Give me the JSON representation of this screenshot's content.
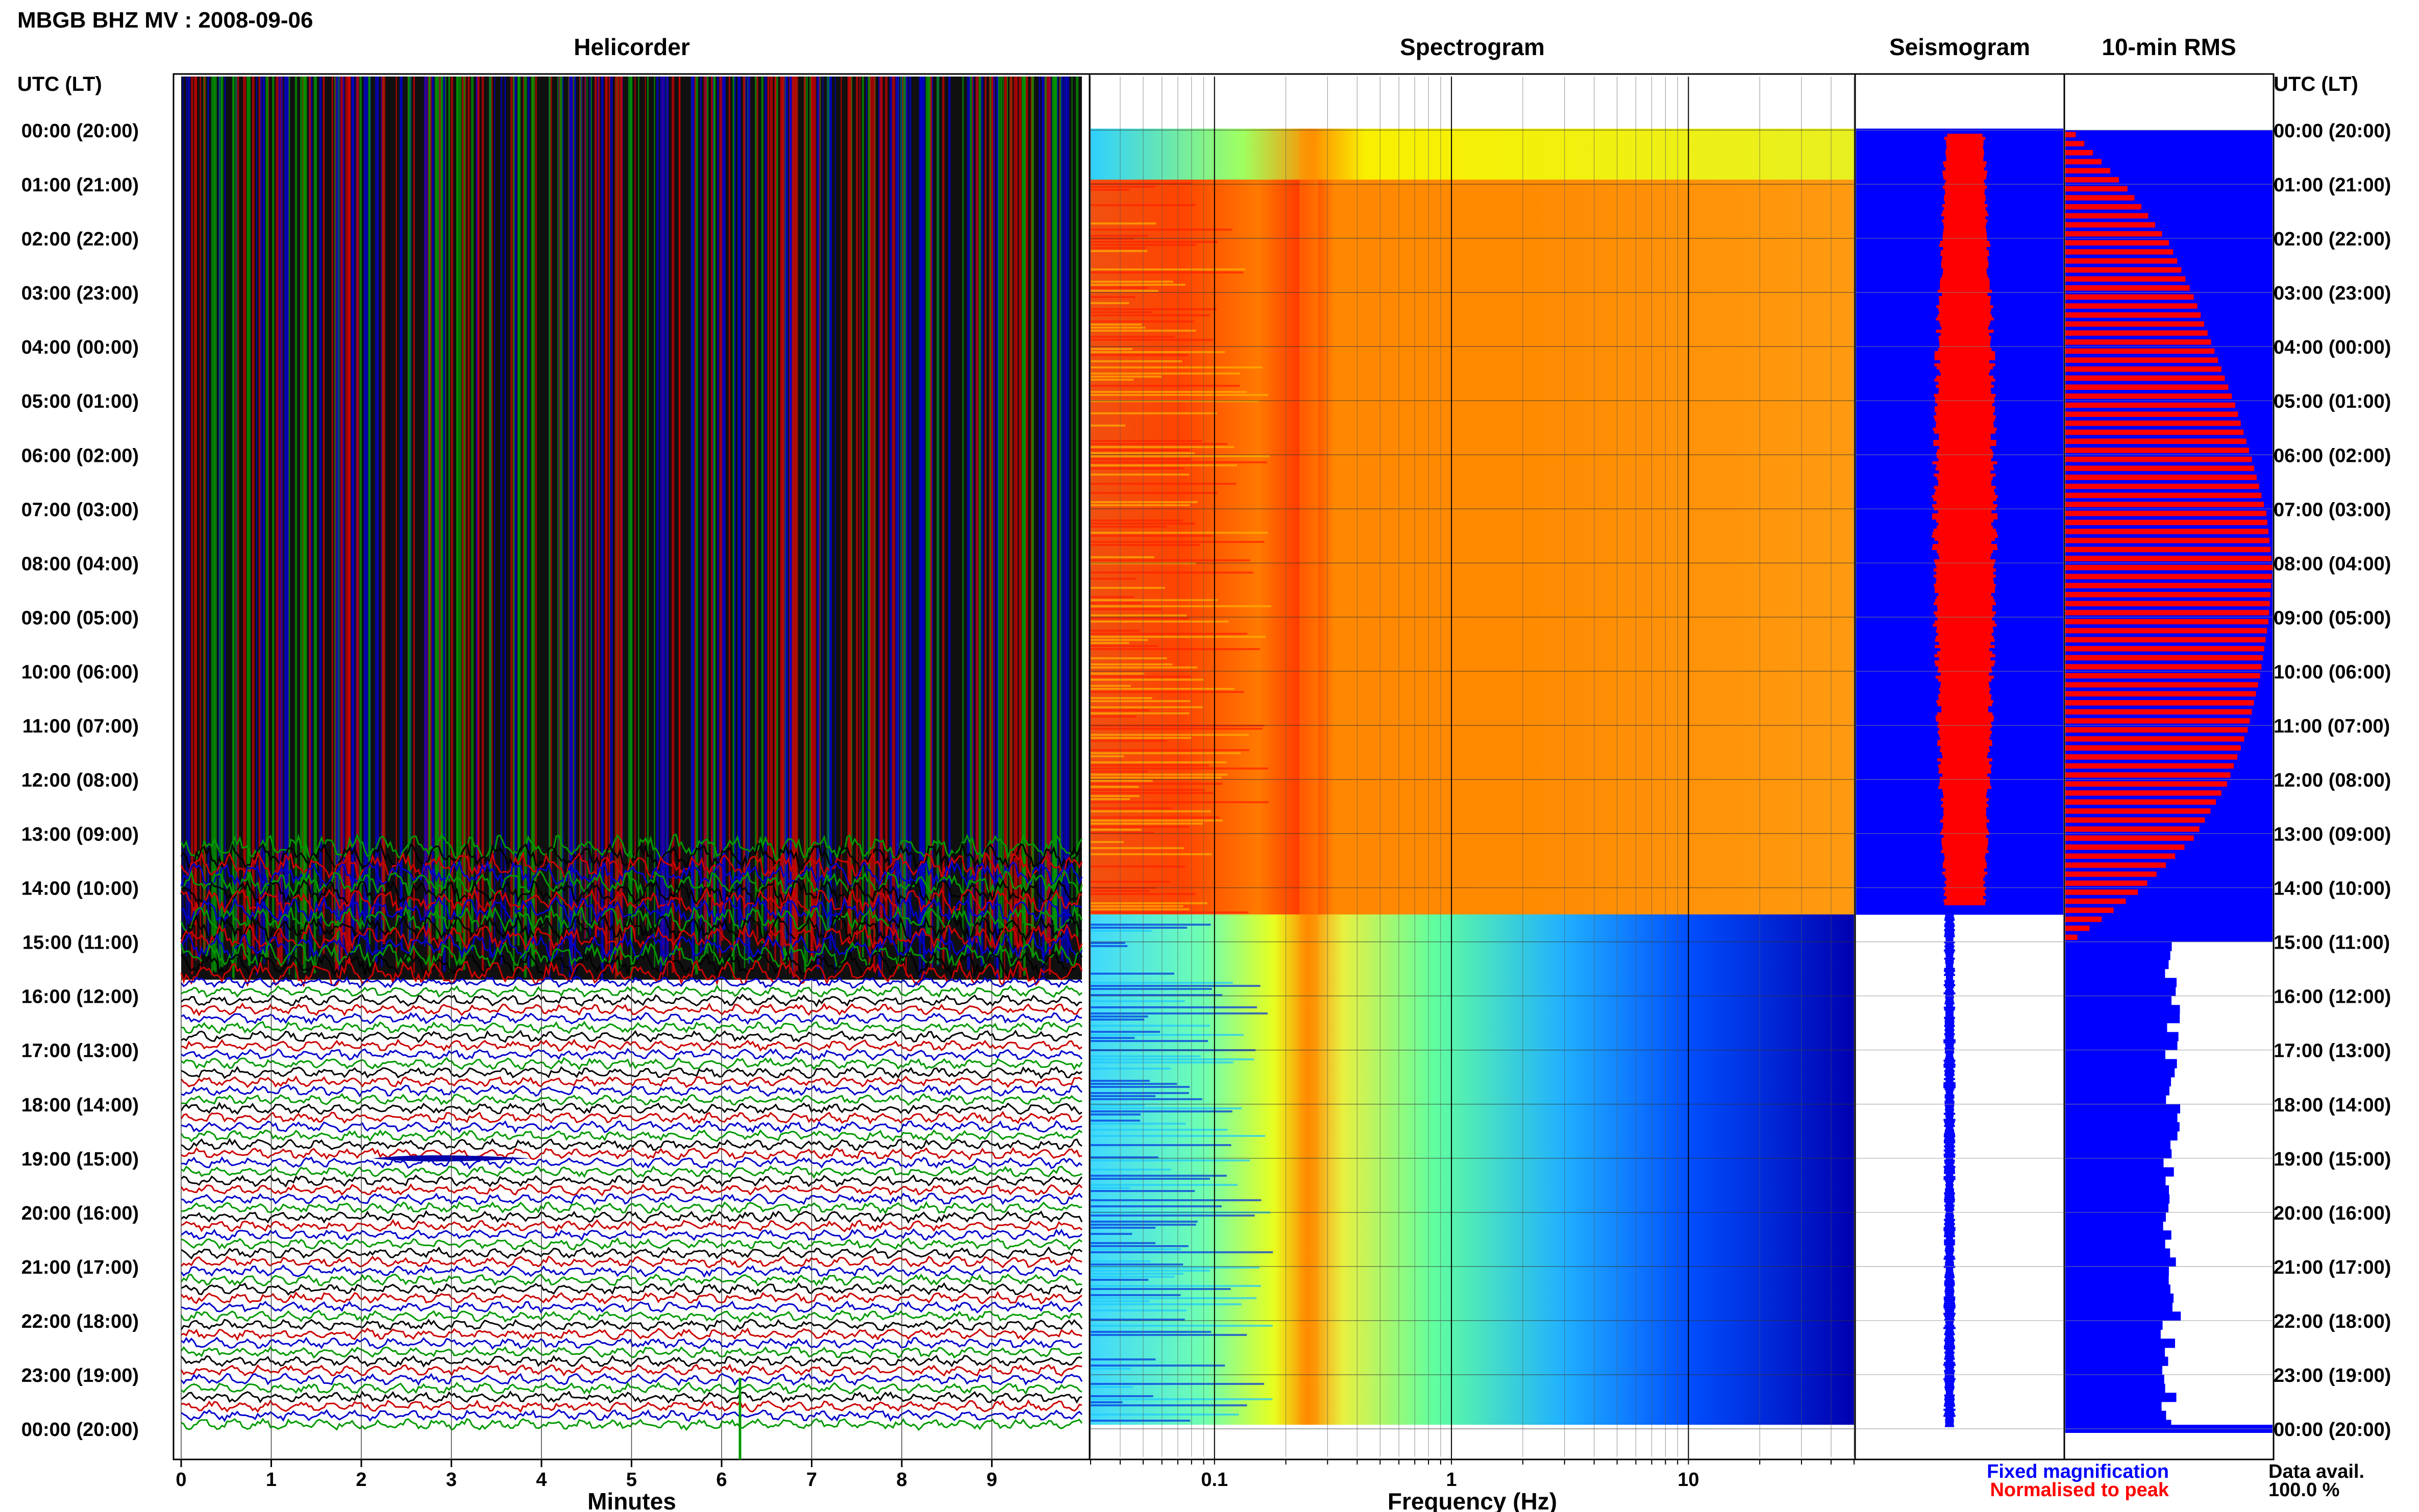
{
  "station_title": "MBGB BHZ MV : 2008-09-06",
  "panels": {
    "helicorder": "Helicorder",
    "spectrogram": "Spectrogram",
    "seismogram": "Seismogram",
    "rms": "10-min RMS"
  },
  "axis": {
    "time_header": "UTC (LT)",
    "helicorder_xlabel": "Minutes",
    "spectrogram_xlabel": "Frequency (Hz)"
  },
  "legend": {
    "fixed": "Fixed magnification",
    "normalised": "Normalised to peak",
    "data_avail_label": "Data avail.",
    "data_avail_value": "100.0 %"
  },
  "colors": {
    "fixed": "#0000ff",
    "normalised": "#ff0000",
    "trace_cycle": [
      "#000000",
      "#cc0000",
      "#0000cc",
      "#009900"
    ]
  },
  "chart_data": [
    {
      "type": "line",
      "title": "Helicorder",
      "xlabel": "Minutes",
      "ylabel": "UTC (LT)",
      "xlim": [
        0,
        10
      ],
      "x_ticks": [
        "0",
        "1",
        "2",
        "3",
        "4",
        "5",
        "6",
        "7",
        "8",
        "9"
      ],
      "y_ticks": [
        "00:00 (20:00)",
        "01:00 (21:00)",
        "02:00 (22:00)",
        "03:00 (23:00)",
        "04:00 (00:00)",
        "05:00 (01:00)",
        "06:00 (02:00)",
        "07:00 (03:00)",
        "08:00 (04:00)",
        "09:00 (05:00)",
        "10:00 (06:00)",
        "11:00 (07:00)",
        "12:00 (08:00)",
        "13:00 (09:00)",
        "14:00 (10:00)",
        "15:00 (11:00)",
        "16:00 (12:00)",
        "17:00 (13:00)",
        "18:00 (14:00)",
        "19:00 (15:00)",
        "20:00 (16:00)",
        "21:00 (17:00)",
        "22:00 (18:00)",
        "23:00 (19:00)",
        "00:00 (20:00)"
      ],
      "saturated_until_hour": 15.7
    },
    {
      "type": "heatmap",
      "title": "Spectrogram",
      "xlabel": "Frequency (Hz)",
      "x_scale": "log",
      "xlim": [
        0.03,
        50
      ],
      "x_ticks": [
        "0.1",
        "1",
        "10"
      ],
      "high_energy_until_hour": 14.5,
      "peak_frequency_hz": 0.25
    },
    {
      "type": "area",
      "title": "Seismogram",
      "series": [
        {
          "name": "Fixed magnification",
          "color": "#0000ff"
        },
        {
          "name": "Normalised to peak",
          "color": "#ff0000"
        }
      ],
      "saturated_until_hour": 14.5
    },
    {
      "type": "bar",
      "title": "10-min RMS",
      "orientation": "horizontal",
      "series": [
        {
          "name": "Fixed magnification",
          "color": "#0000ff",
          "values": [
            1.0,
            1.0,
            1.0,
            1.0,
            1.0,
            1.0,
            1.0,
            1.0,
            1.0,
            1.0,
            1.0,
            1.0,
            1.0,
            1.0,
            1.0,
            0.5,
            0.52,
            0.5,
            0.52,
            0.5,
            0.5,
            0.52,
            0.5,
            0.5,
            1.0
          ]
        },
        {
          "name": "Normalised to peak",
          "color": "#ff0000",
          "values": [
            0.05,
            0.3,
            0.5,
            0.62,
            0.72,
            0.82,
            0.9,
            0.97,
            1.0,
            0.98,
            0.94,
            0.88,
            0.78,
            0.62,
            0.35,
            0.0,
            0.0,
            0.0,
            0.0,
            0.0,
            0.0,
            0.0,
            0.0,
            0.0,
            0.0
          ]
        }
      ],
      "data_availability_percent": 100.0
    }
  ]
}
